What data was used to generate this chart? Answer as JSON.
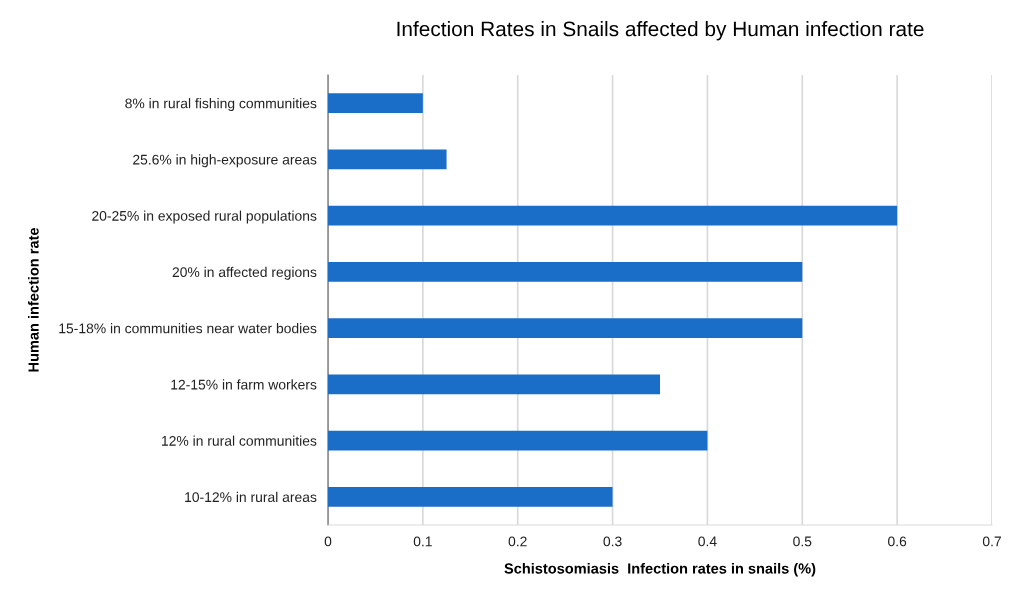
{
  "chart_data": {
    "type": "bar",
    "orientation": "horizontal",
    "title": "Infection Rates in Snails affected by Human infection rate",
    "xlabel": "Schistosomiasis  Infection rates in snails (%)",
    "ylabel": "Human infection rate",
    "categories": [
      "8% in rural fishing communities",
      "25.6% in high-exposure areas",
      "20-25% in exposed rural populations",
      "20% in affected regions",
      "15-18% in communities near water bodies",
      "12-15% in farm workers",
      "12% in rural communities",
      "10-12% in rural areas"
    ],
    "values": [
      0.1,
      0.125,
      0.6,
      0.5,
      0.5,
      0.35,
      0.4,
      0.3
    ],
    "color": "#1a6ec8",
    "xlim": [
      0,
      0.7
    ],
    "xticks": [
      0,
      0.1,
      0.2,
      0.3,
      0.4,
      0.5,
      0.6,
      0.7
    ],
    "grid": "x",
    "legend": false
  }
}
